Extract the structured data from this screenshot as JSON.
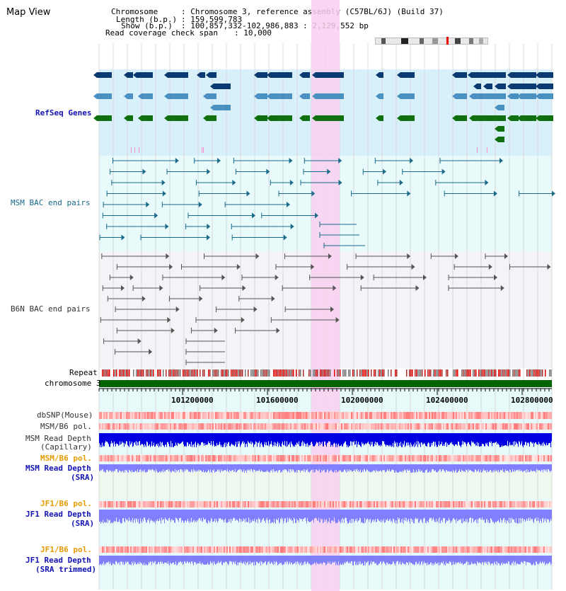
{
  "title": "Map View",
  "info": {
    "chromosome_label": "Chromosome",
    "chromosome_value": ": Chromosome 3, reference assembly (C57BL/6J) (Build 37)",
    "length_label": "Length (b.p.)",
    "length_value": ": 159,599,783",
    "show_label": "Show (b.p.)",
    "show_value": ": 100,857,332-102,986,883 : 2,129,552 bp",
    "coverage_label": "Read coverage check span",
    "coverage_value": ": 10,000"
  },
  "tracks": {
    "refseq": "RefSeq Genes",
    "msm_bac": "MSM BAC end pairs",
    "b6n_bac": "B6N BAC end pairs",
    "repeat": "Repeat",
    "chromosome": "chromosome 3",
    "dbsnp": "dbSNP(Mouse)",
    "msm_b6_pol": "MSM/B6 pol.",
    "msm_read_depth_cap_1": "MSM Read Depth",
    "msm_read_depth_cap_2": "(Capillary)",
    "msm_b6_pol_2": "MSM/B6 pol.",
    "msm_read_depth_sra_1": "MSM Read Depth",
    "msm_read_depth_sra_2": "(SRA)",
    "jf1_b6_pol": "JF1/B6 pol.",
    "jf1_read_depth_sra_1": "JF1 Read Depth",
    "jf1_read_depth_sra_2": "(SRA)",
    "jf1_b6_pol_2": "JF1/B6 pol.",
    "jf1_read_depth_trim_1": "JF1 Read Depth",
    "jf1_read_depth_trim_2": "(SRA trimmed)"
  },
  "axis": {
    "ticks": [
      "101200000",
      "101600000",
      "102000000",
      "102400000",
      "102800000"
    ]
  },
  "colors": {
    "refseq_bg": "#d8f0fa",
    "msm_bg": "#e8fafa",
    "b6n_bg": "#f4f4f8",
    "highlight": "#f8d0f0",
    "chrom_green": "#006400",
    "gene_navy": "#0a3a70",
    "gene_blue": "#4a90c0",
    "gene_green": "#107010",
    "depth_blue": "#0000e0",
    "depth_light": "#8080ff"
  }
}
